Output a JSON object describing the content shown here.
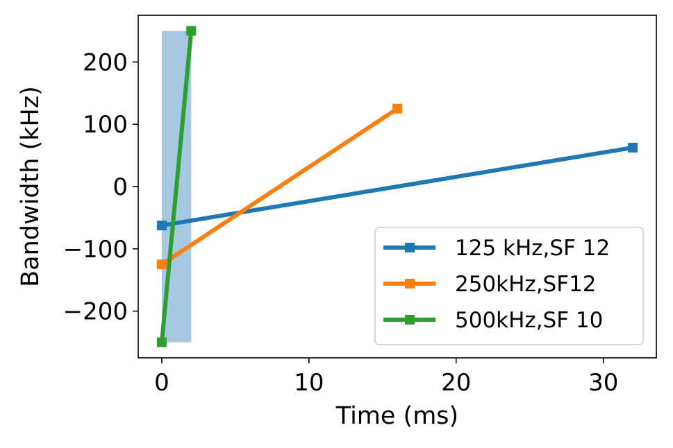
{
  "chart_data": {
    "type": "line",
    "xlabel": "Time (ms)",
    "ylabel": "Bandwidth (kHz)",
    "xlim": [
      -1.6,
      33.6
    ],
    "ylim": [
      -275,
      275
    ],
    "xticks": [
      0,
      10,
      20,
      30
    ],
    "yticks": [
      -200,
      -100,
      0,
      100,
      200
    ],
    "xtick_labels": [
      "0",
      "10",
      "20",
      "30"
    ],
    "ytick_labels": [
      "−200",
      "−100",
      "0",
      "100",
      "200"
    ],
    "grid": false,
    "legend_position": "lower-right",
    "shaded_region": {
      "x": [
        0,
        2
      ],
      "y": [
        -250,
        250
      ],
      "color": "#a6c8e3"
    },
    "series": [
      {
        "name": "125 kHz,SF 12",
        "color": "#1f77b4",
        "marker": "square",
        "x": [
          0,
          32
        ],
        "y": [
          -62.5,
          62.5
        ]
      },
      {
        "name": "250kHz,SF12",
        "color": "#ff7f0e",
        "marker": "square",
        "x": [
          0,
          16
        ],
        "y": [
          -125,
          125
        ]
      },
      {
        "name": "500kHz,SF 10",
        "color": "#2ca02c",
        "marker": "square",
        "x": [
          0,
          2
        ],
        "y": [
          -250,
          250
        ]
      }
    ]
  }
}
